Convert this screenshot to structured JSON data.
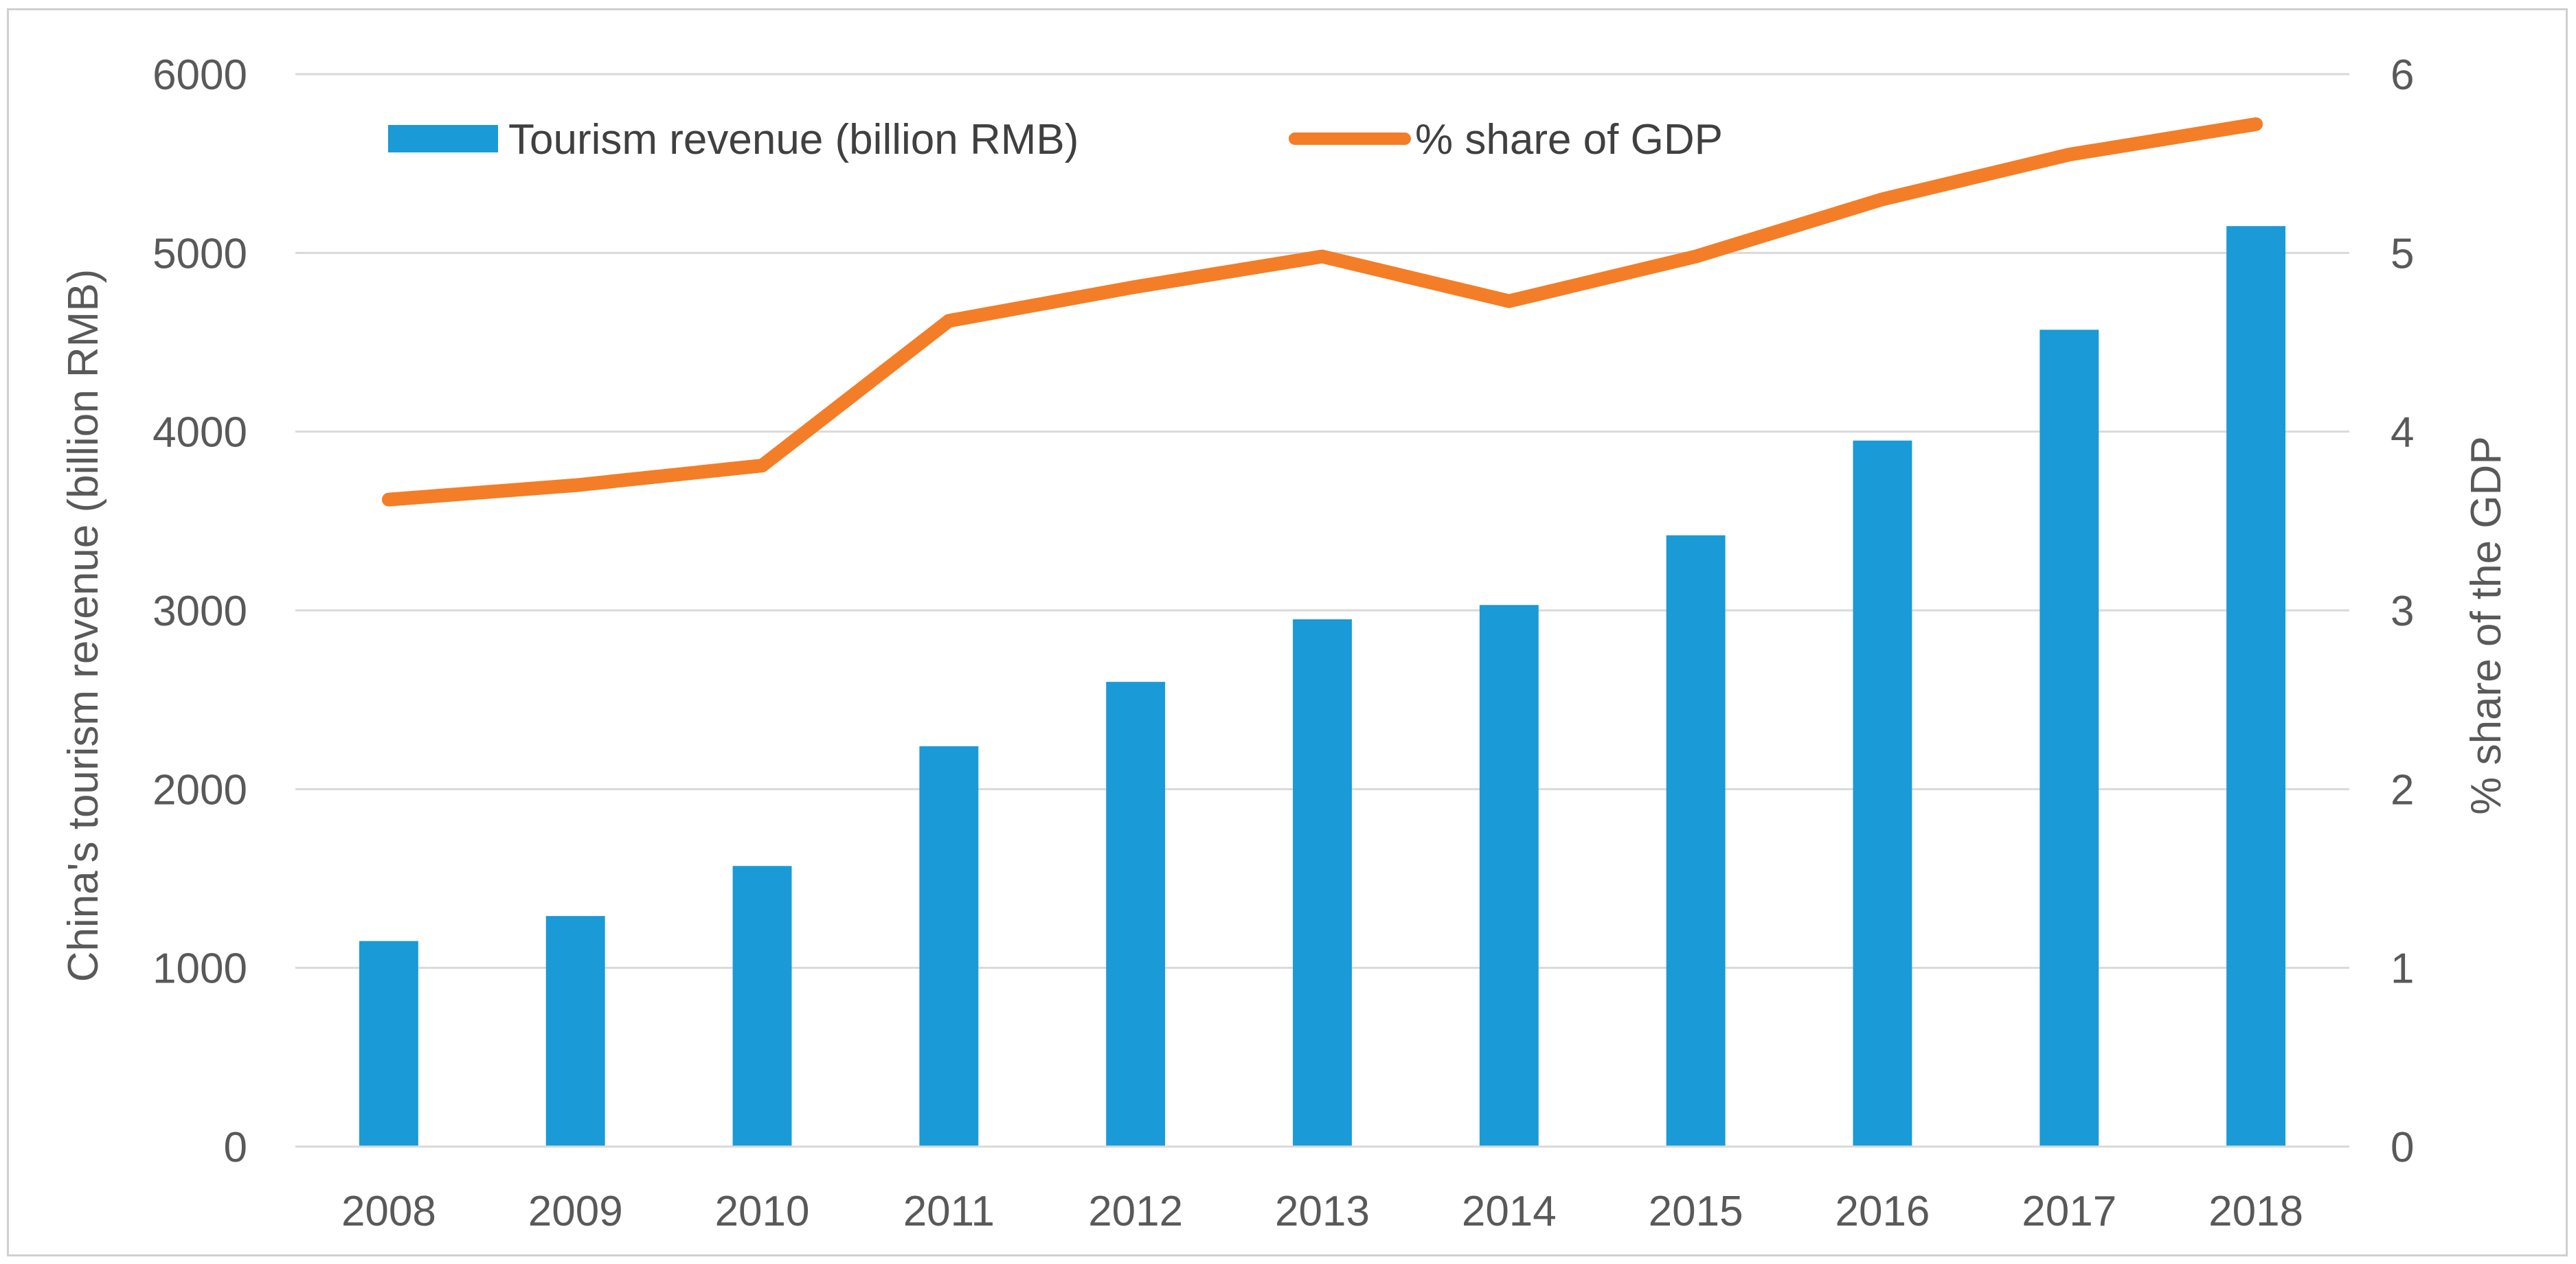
{
  "chart_data": {
    "type": "bar",
    "categories": [
      "2008",
      "2009",
      "2010",
      "2011",
      "2012",
      "2013",
      "2014",
      "2015",
      "2016",
      "2017",
      "2018"
    ],
    "series": [
      {
        "name": "Tourism revenue (billion RMB)",
        "kind": "bar",
        "axis": "left",
        "color": "#1a9ad6",
        "values": [
          1150,
          1290,
          1570,
          2240,
          2600,
          2950,
          3030,
          3420,
          3950,
          4570,
          5150
        ]
      },
      {
        "name": "% share of GDP",
        "kind": "line",
        "axis": "right",
        "color": "#f47d27",
        "values": [
          3.62,
          3.7,
          3.81,
          4.62,
          4.81,
          4.98,
          4.73,
          4.98,
          5.3,
          5.55,
          5.72
        ]
      }
    ],
    "title": "",
    "xlabel": "",
    "ylabel": "China's tourism revenue (billion RMB)",
    "y2label": "% share of the GDP",
    "ylim": [
      0,
      6000
    ],
    "y2lim": [
      0,
      6
    ],
    "yticks": [
      "0",
      "1000",
      "2000",
      "3000",
      "4000",
      "5000",
      "6000"
    ],
    "y2ticks": [
      "0",
      "1",
      "2",
      "3",
      "4",
      "5",
      "6"
    ],
    "grid": true,
    "legend_position": "top"
  }
}
